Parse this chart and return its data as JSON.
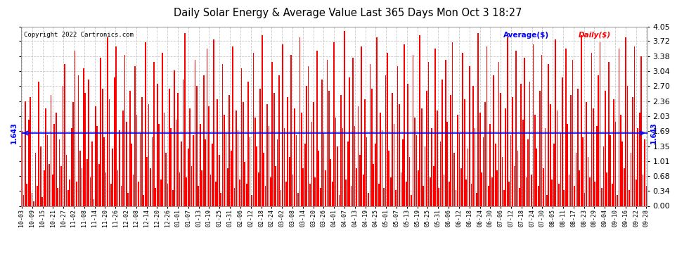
{
  "title": "Daily Solar Energy & Average Value Last 365 Days Mon Oct 3 18:27",
  "copyright": "Copyright 2022 Cartronics.com",
  "average_value": 1.643,
  "average_label": "1.643",
  "ymin": 0.0,
  "ymax": 4.05,
  "yticks": [
    0.0,
    0.34,
    0.68,
    1.01,
    1.35,
    1.69,
    2.03,
    2.36,
    2.7,
    3.04,
    3.38,
    3.72,
    4.05
  ],
  "bar_color": "#ff0000",
  "avg_line_color": "#0000ff",
  "background_color": "#ffffff",
  "grid_color": "#bbbbbb",
  "legend_avg_label": "Average($)",
  "legend_daily_label": "Daily($)",
  "legend_avg_color": "#0000ff",
  "legend_daily_color": "#ff0000",
  "x_tick_labels": [
    "10-03",
    "10-09",
    "10-15",
    "10-21",
    "10-27",
    "11-02",
    "11-08",
    "11-14",
    "11-20",
    "11-26",
    "12-02",
    "12-08",
    "12-14",
    "12-20",
    "12-26",
    "01-01",
    "01-07",
    "01-13",
    "01-19",
    "01-25",
    "01-31",
    "02-06",
    "02-12",
    "02-18",
    "02-24",
    "03-02",
    "03-08",
    "03-14",
    "03-20",
    "03-26",
    "04-01",
    "04-07",
    "04-13",
    "04-19",
    "04-25",
    "05-01",
    "05-07",
    "05-13",
    "05-19",
    "05-25",
    "05-31",
    "06-06",
    "06-12",
    "06-18",
    "06-24",
    "06-30",
    "07-06",
    "07-12",
    "07-18",
    "07-24",
    "07-30",
    "08-05",
    "08-11",
    "08-17",
    "08-23",
    "08-29",
    "09-04",
    "09-10",
    "09-16",
    "09-22",
    "09-28"
  ],
  "bar_values": [
    1.69,
    0.25,
    2.36,
    0.5,
    1.95,
    2.45,
    0.3,
    0.1,
    1.2,
    0.45,
    2.8,
    1.35,
    0.2,
    0.8,
    2.2,
    1.6,
    0.95,
    2.5,
    0.7,
    1.85,
    2.1,
    0.4,
    1.5,
    0.9,
    2.7,
    3.2,
    1.15,
    0.35,
    0.6,
    1.75,
    2.35,
    3.5,
    0.55,
    2.95,
    1.25,
    0.85,
    3.1,
    2.55,
    1.05,
    2.85,
    0.65,
    1.45,
    0.15,
    2.25,
    1.8,
    0.95,
    3.35,
    2.65,
    1.55,
    0.75,
    3.8,
    2.4,
    0.5,
    1.3,
    2.9,
    3.6,
    0.8,
    1.7,
    0.45,
    2.15,
    3.4,
    1.9,
    0.3,
    2.6,
    1.4,
    0.7,
    3.15,
    2.05,
    0.55,
    1.65,
    2.45,
    0.25,
    3.7,
    1.1,
    2.3,
    0.85,
    1.55,
    3.25,
    0.4,
    2.75,
    1.85,
    0.6,
    3.45,
    2.1,
    1.2,
    0.5,
    2.65,
    1.75,
    0.35,
    3.05,
    1.95,
    2.55,
    0.75,
    1.45,
    2.85,
    3.9,
    0.65,
    1.3,
    2.2,
    0.9,
    1.6,
    3.3,
    2.7,
    0.45,
    1.85,
    0.8,
    2.95,
    1.5,
    3.55,
    2.25,
    0.7,
    1.4,
    3.75,
    0.55,
    2.4,
    1.15,
    0.3,
    3.2,
    2.05,
    1.65,
    0.85,
    2.5,
    1.25,
    3.6,
    0.4,
    2.15,
    1.7,
    0.6,
    3.1,
    2.35,
    1.0,
    0.5,
    2.8,
    1.55,
    0.25,
    3.45,
    2.0,
    1.35,
    0.75,
    2.65,
    3.85,
    1.2,
    0.45,
    2.3,
    1.8,
    0.65,
    3.25,
    2.55,
    0.9,
    1.5,
    2.95,
    0.35,
    3.65,
    1.75,
    0.55,
    2.45,
    1.1,
    3.4,
    0.7,
    2.2,
    1.6,
    0.3,
    3.8,
    2.1,
    0.85,
    1.4,
    2.7,
    3.15,
    0.5,
    1.9,
    2.35,
    0.65,
    3.5,
    1.25,
    0.4,
    2.85,
    1.65,
    0.8,
    3.3,
    2.6,
    1.05,
    0.55,
    3.7,
    2.0,
    1.35,
    0.25,
    2.5,
    1.75,
    3.95,
    0.6,
    1.45,
    2.9,
    0.45,
    3.35,
    1.8,
    0.85,
    2.25,
    1.15,
    3.6,
    0.7,
    2.4,
    1.55,
    0.3,
    3.2,
    2.65,
    0.95,
    1.4,
    3.8,
    0.5,
    2.1,
    1.7,
    0.4,
    2.95,
    3.45,
    1.25,
    0.65,
    2.55,
    1.85,
    0.35,
    3.15,
    2.3,
    0.75,
    1.5,
    3.65,
    0.55,
    2.75,
    1.1,
    0.25,
    3.4,
    2.0,
    1.6,
    0.8,
    3.85,
    2.2,
    0.45,
    1.35,
    2.6,
    3.25,
    0.65,
    1.75,
    0.9,
    3.55,
    2.15,
    0.4,
    1.45,
    2.85,
    0.7,
    3.3,
    1.9,
    0.55,
    2.5,
    3.7,
    1.2,
    0.35,
    2.05,
    1.65,
    0.85,
    3.45,
    2.4,
    0.6,
    1.3,
    3.15,
    0.5,
    2.7,
    1.75,
    0.3,
    3.9,
    2.1,
    0.75,
    1.55,
    2.35,
    3.6,
    0.45,
    1.85,
    0.65,
    2.95,
    1.4,
    0.8,
    3.25,
    2.55,
    1.1,
    0.35,
    2.2,
    3.8,
    0.55,
    1.6,
    2.45,
    0.9,
    3.5,
    1.25,
    0.4,
    2.75,
    1.95,
    3.35,
    0.65,
    1.5,
    2.8,
    0.7,
    3.65,
    2.05,
    1.3,
    0.45,
    2.6,
    3.4,
    0.85,
    1.75,
    0.25,
    3.2,
    2.3,
    0.6,
    1.4,
    3.75,
    2.15,
    0.5,
    1.65,
    2.9,
    0.35,
    3.55,
    1.85,
    0.7,
    2.5,
    3.3,
    0.45,
    1.2,
    2.65,
    0.8,
    3.85,
    1.55,
    0.3,
    2.35,
    1.1,
    0.65,
    3.45,
    2.2,
    0.55,
    1.8,
    2.95,
    3.7,
    0.4,
    1.35,
    2.6,
    0.75,
    3.25,
    1.6,
    0.5,
    2.4,
    1.9,
    0.25,
    3.55,
    2.05,
    1.45,
    0.85,
    3.8,
    2.7,
    0.35,
    1.2,
    2.45,
    3.6,
    0.6,
    1.75,
    2.1,
    3.38,
    0.7,
    1.5,
    0.45
  ]
}
